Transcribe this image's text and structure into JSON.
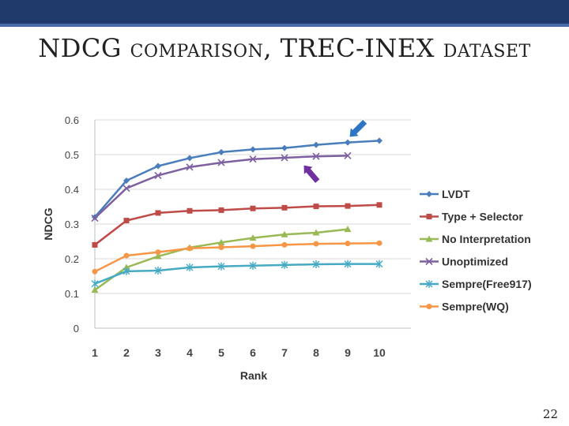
{
  "slide": {
    "title_part1": "NDCG ",
    "title_part2": "comparison",
    "title_part3": ", TREC-INEX ",
    "title_part4": "dataset",
    "page_number": "22"
  },
  "colors": {
    "header_band": "#1f3a6b",
    "arrow_blue": "#2e75c6",
    "arrow_purple": "#7030a0"
  },
  "chart_data": {
    "type": "line",
    "title": "",
    "xlabel": "Rank",
    "ylabel": "NDCG",
    "x": [
      1,
      2,
      3,
      4,
      5,
      6,
      7,
      8,
      9,
      10
    ],
    "x_tick_labels": [
      "1",
      "2",
      "3",
      "4",
      "5",
      "6",
      "7",
      "8",
      "9",
      "10"
    ],
    "ylim": [
      0,
      0.6
    ],
    "y_ticks": [
      0,
      0.1,
      0.2,
      0.3,
      0.4,
      0.5,
      0.6
    ],
    "y_tick_labels": [
      "0",
      "0.1",
      "0.2",
      "0.3",
      "0.4",
      "0.5",
      "0.6"
    ],
    "grid": "horizontal",
    "legend_position": "right",
    "series": [
      {
        "name": "LVDT",
        "color": "#4a7ebb",
        "marker": "diamond",
        "values": [
          0.32,
          0.425,
          0.467,
          0.49,
          0.507,
          0.515,
          0.519,
          0.528,
          0.535,
          0.54
        ]
      },
      {
        "name": "Type + Selector",
        "color": "#be4b48",
        "marker": "square",
        "values": [
          0.24,
          0.31,
          0.332,
          0.338,
          0.34,
          0.345,
          0.347,
          0.351,
          0.352,
          0.355
        ]
      },
      {
        "name": "No Interpretation",
        "color": "#98b954",
        "marker": "triangle",
        "values": [
          0.11,
          0.175,
          0.207,
          0.232,
          0.247,
          0.26,
          0.27,
          0.275,
          0.285,
          null
        ]
      },
      {
        "name": "Unoptimized",
        "color": "#7d60a0",
        "marker": "x",
        "values": [
          0.317,
          0.403,
          0.44,
          0.464,
          0.477,
          0.487,
          0.491,
          0.495,
          0.497,
          null
        ]
      },
      {
        "name": "Sempre(Free917)",
        "color": "#46aac5",
        "marker": "star",
        "values": [
          0.128,
          0.164,
          0.166,
          0.175,
          0.178,
          0.18,
          0.182,
          0.184,
          0.185,
          0.185
        ]
      },
      {
        "name": "Sempre(WQ)",
        "color": "#f79646",
        "marker": "circle",
        "values": [
          0.163,
          0.209,
          0.219,
          0.23,
          0.233,
          0.236,
          0.24,
          0.243,
          0.244,
          0.245
        ]
      }
    ]
  }
}
